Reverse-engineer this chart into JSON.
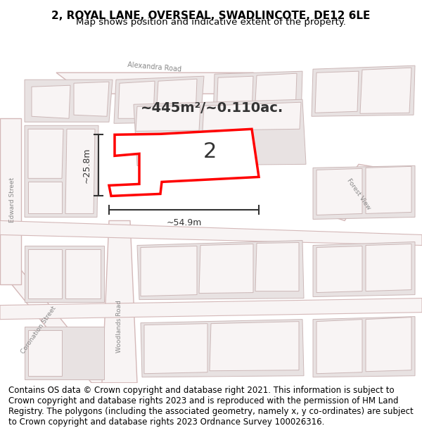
{
  "title_line1": "2, ROYAL LANE, OVERSEAL, SWADLINCOTE, DE12 6LE",
  "title_line2": "Map shows position and indicative extent of the property.",
  "footer_text": "Contains OS data © Crown copyright and database right 2021. This information is subject to Crown copyright and database rights 2023 and is reproduced with the permission of HM Land Registry. The polygons (including the associated geometry, namely x, y co-ordinates) are subject to Crown copyright and database rights 2023 Ordnance Survey 100026316.",
  "bg_color": "#f5f5f5",
  "map_bg": "#f0eeee",
  "road_color_main": "#e8d8d8",
  "road_color_outline": "#d0b0b0",
  "block_fill": "#e8e0e0",
  "block_outline": "#d8c8c8",
  "plot_color": "#ff0000",
  "plot_fill": "#ffffff",
  "plot_label": "2",
  "area_text": "~445m²/~0.110ac.",
  "dim_width_text": "~54.9m",
  "dim_height_text": "~25.8m",
  "footer_fontsize": 8.5,
  "title_fontsize": 11,
  "subtitle_fontsize": 9.5
}
